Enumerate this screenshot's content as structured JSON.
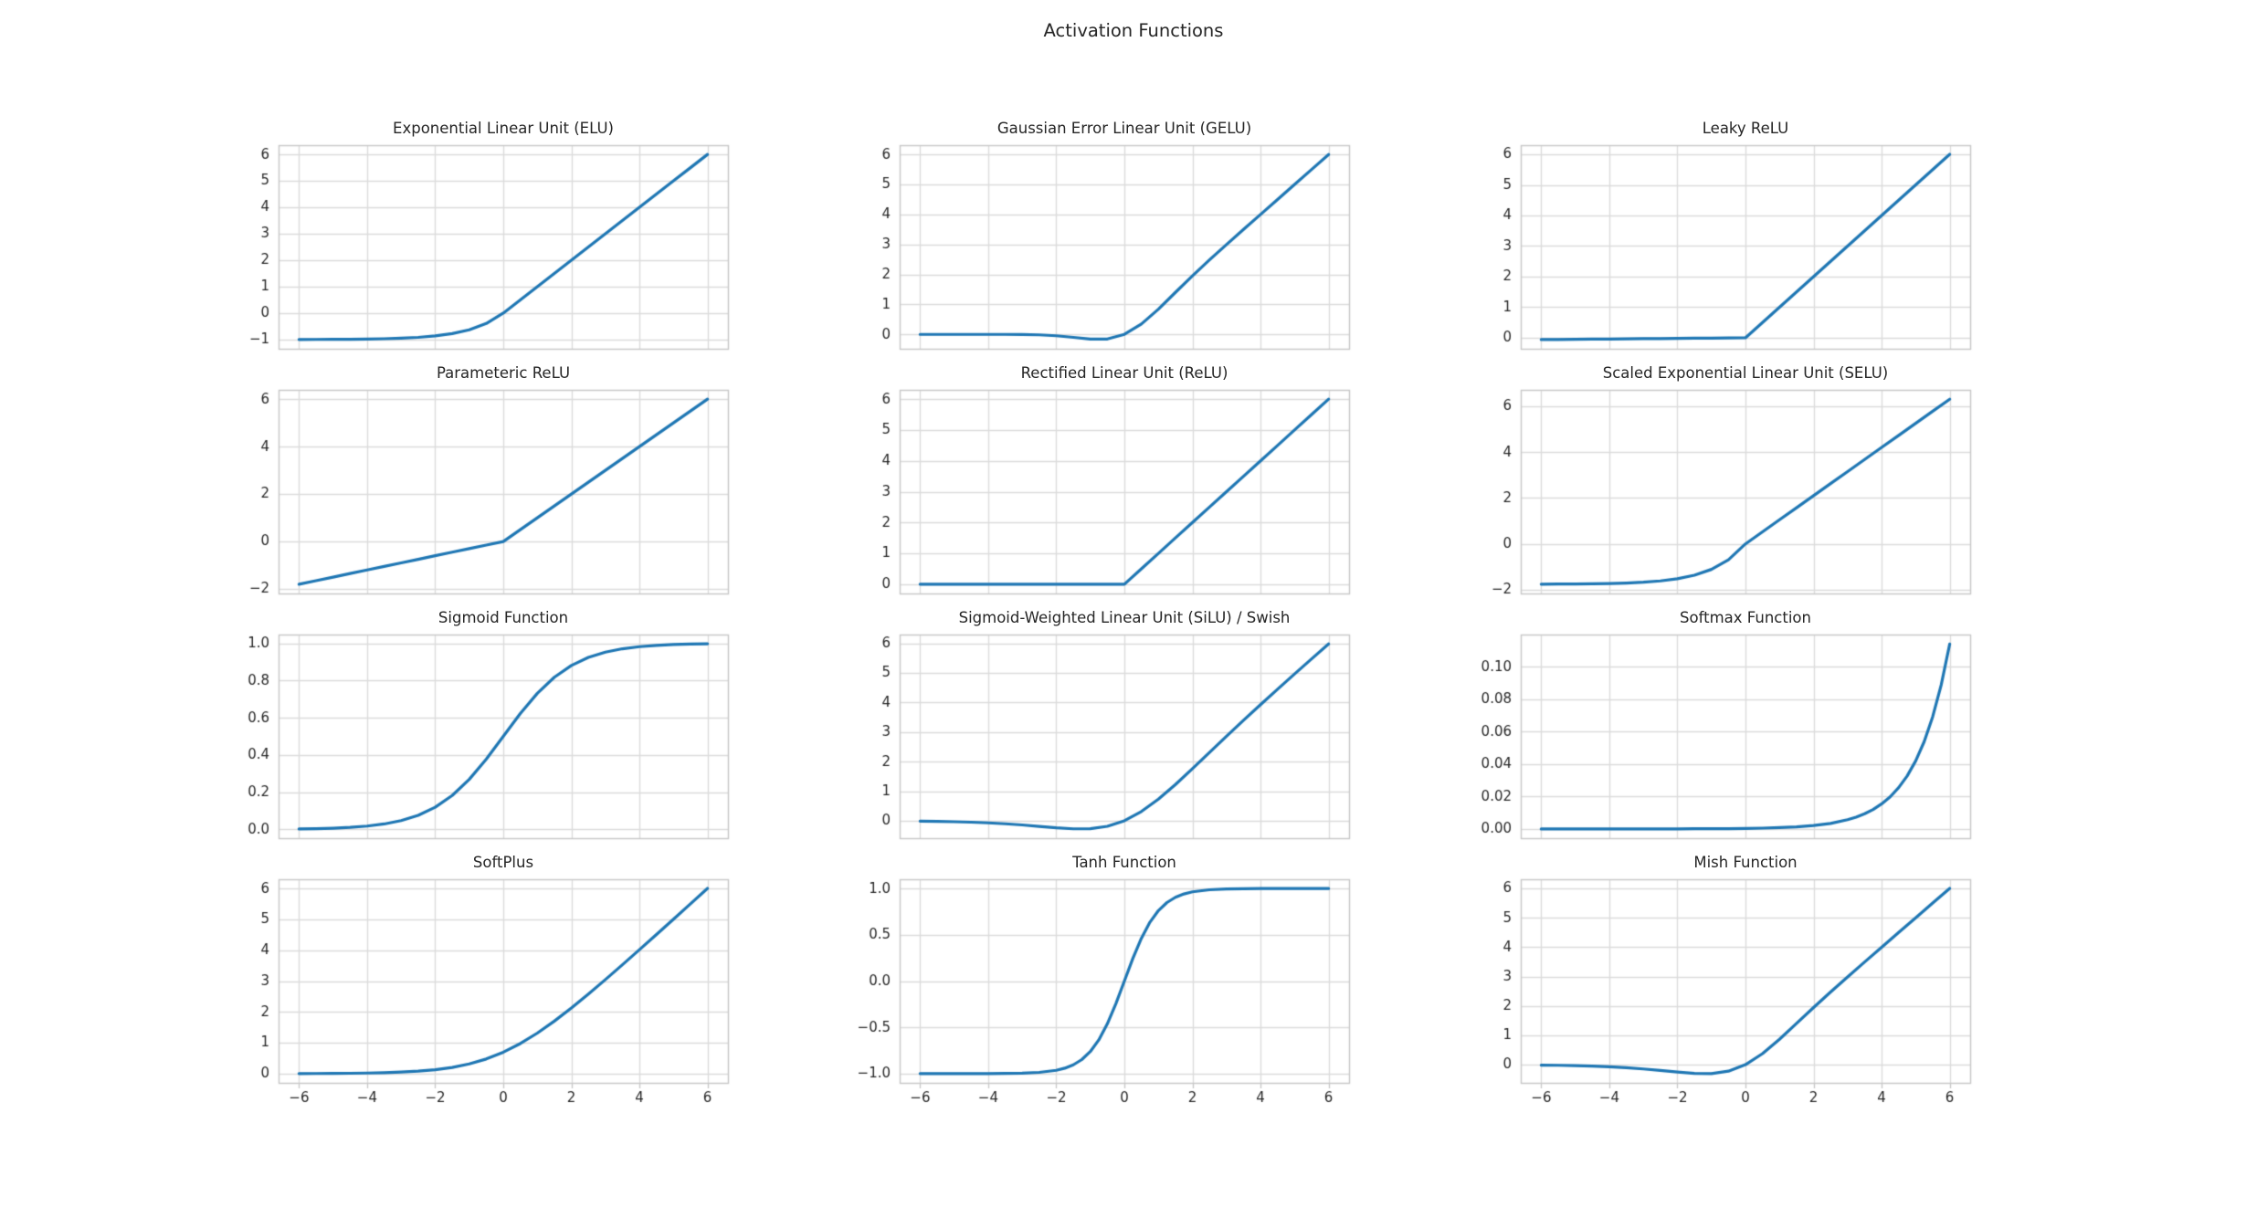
{
  "page": {
    "title": "Activation Functions",
    "grid": {
      "rows": 4,
      "cols": 3
    }
  },
  "style": {
    "line_color": "#1f77b4",
    "grid_color": "#dcdcdc",
    "spine_color": "#c9c9c9",
    "tick_label_color": "#262626",
    "title_color": "#262626",
    "background": "#ffffff"
  },
  "chart_data": [
    {
      "type": "line",
      "title": "Exponential Linear Unit (ELU)",
      "xlim": [
        -6.6,
        6.6
      ],
      "ylim": [
        -1.35,
        6.35
      ],
      "grid": true,
      "show_xticks": false,
      "xticks": {
        "values": [
          -6,
          -4,
          -2,
          0,
          2,
          4,
          6
        ],
        "labels": [
          "−6",
          "−4",
          "−2",
          "0",
          "2",
          "4",
          "6"
        ]
      },
      "yticks": {
        "values": [
          6,
          5,
          4,
          3,
          2,
          1,
          0,
          -1
        ],
        "labels": [
          "6",
          "5",
          "4",
          "3",
          "2",
          "1",
          "0",
          "−1"
        ]
      },
      "x": [
        -6,
        -5.5,
        -5,
        -4.5,
        -4,
        -3.5,
        -3,
        -2.5,
        -2,
        -1.5,
        -1,
        -0.5,
        0,
        0.5,
        1,
        1.5,
        2,
        2.5,
        3,
        3.5,
        4,
        4.5,
        5,
        5.5,
        6
      ],
      "y": [
        -0.998,
        -0.996,
        -0.993,
        -0.989,
        -0.982,
        -0.97,
        -0.95,
        -0.918,
        -0.865,
        -0.777,
        -0.632,
        -0.393,
        0,
        0.5,
        1,
        1.5,
        2,
        2.5,
        3,
        3.5,
        4,
        4.5,
        5,
        5.5,
        6
      ]
    },
    {
      "type": "line",
      "title": "Gaussian Error Linear Unit (GELU)",
      "xlim": [
        -6.6,
        6.6
      ],
      "ylim": [
        -0.48,
        6.31
      ],
      "grid": true,
      "show_xticks": false,
      "xticks": {
        "values": [
          -6,
          -4,
          -2,
          0,
          2,
          4,
          6
        ],
        "labels": [
          "−6",
          "−4",
          "−2",
          "0",
          "2",
          "4",
          "6"
        ]
      },
      "yticks": {
        "values": [
          6,
          5,
          4,
          3,
          2,
          1,
          0
        ],
        "labels": [
          "6",
          "5",
          "4",
          "3",
          "2",
          "1",
          "0"
        ]
      },
      "x": [
        -6,
        -5.5,
        -5,
        -4.5,
        -4,
        -3.5,
        -3,
        -2.5,
        -2,
        -1.5,
        -1,
        -0.5,
        0,
        0.5,
        1,
        1.5,
        2,
        2.5,
        3,
        3.5,
        4,
        4.5,
        5,
        5.5,
        6
      ],
      "y": [
        0,
        0,
        0,
        -0.0001,
        -0.0001,
        -0.0008,
        -0.004,
        -0.0155,
        -0.0455,
        -0.1002,
        -0.1587,
        -0.1543,
        0,
        0.3457,
        0.8413,
        1.3998,
        1.9545,
        2.4845,
        2.996,
        3.4992,
        3.9999,
        4.5,
        5,
        5.5,
        6
      ]
    },
    {
      "type": "line",
      "title": "Leaky ReLU",
      "xlim": [
        -6.6,
        6.6
      ],
      "ylim": [
        -0.36,
        6.3
      ],
      "grid": true,
      "show_xticks": false,
      "xticks": {
        "values": [
          -6,
          -4,
          -2,
          0,
          2,
          4,
          6
        ],
        "labels": [
          "−6",
          "−4",
          "−2",
          "0",
          "2",
          "4",
          "6"
        ]
      },
      "yticks": {
        "values": [
          6,
          5,
          4,
          3,
          2,
          1,
          0
        ],
        "labels": [
          "6",
          "5",
          "4",
          "3",
          "2",
          "1",
          "0"
        ]
      },
      "x": [
        -6,
        -5.5,
        -5,
        -4.5,
        -4,
        -3.5,
        -3,
        -2.5,
        -2,
        -1.5,
        -1,
        -0.5,
        0,
        0.5,
        1,
        1.5,
        2,
        2.5,
        3,
        3.5,
        4,
        4.5,
        5,
        5.5,
        6
      ],
      "y": [
        -0.06,
        -0.055,
        -0.05,
        -0.045,
        -0.04,
        -0.035,
        -0.03,
        -0.025,
        -0.02,
        -0.015,
        -0.01,
        -0.005,
        0,
        0.5,
        1,
        1.5,
        2,
        2.5,
        3,
        3.5,
        4,
        4.5,
        5,
        5.5,
        6
      ]
    },
    {
      "type": "line",
      "title": "Parameteric ReLU",
      "xlim": [
        -6.6,
        6.6
      ],
      "ylim": [
        -2.19,
        6.39
      ],
      "grid": true,
      "show_xticks": false,
      "xticks": {
        "values": [
          -6,
          -4,
          -2,
          0,
          2,
          4,
          6
        ],
        "labels": [
          "−6",
          "−4",
          "−2",
          "0",
          "2",
          "4",
          "6"
        ]
      },
      "yticks": {
        "values": [
          6,
          4,
          2,
          0,
          -2
        ],
        "labels": [
          "6",
          "4",
          "2",
          "0",
          "−2"
        ]
      },
      "x": [
        -6,
        -5.5,
        -5,
        -4.5,
        -4,
        -3.5,
        -3,
        -2.5,
        -2,
        -1.5,
        -1,
        -0.5,
        0,
        0.5,
        1,
        1.5,
        2,
        2.5,
        3,
        3.5,
        4,
        4.5,
        5,
        5.5,
        6
      ],
      "y": [
        -1.8,
        -1.65,
        -1.5,
        -1.35,
        -1.2,
        -1.05,
        -0.9,
        -0.75,
        -0.6,
        -0.45,
        -0.3,
        -0.15,
        0,
        0.5,
        1,
        1.5,
        2,
        2.5,
        3,
        3.5,
        4,
        4.5,
        5,
        5.5,
        6
      ]
    },
    {
      "type": "line",
      "title": "Rectified Linear Unit (ReLU)",
      "xlim": [
        -6.6,
        6.6
      ],
      "ylim": [
        -0.3,
        6.3
      ],
      "grid": true,
      "show_xticks": false,
      "xticks": {
        "values": [
          -6,
          -4,
          -2,
          0,
          2,
          4,
          6
        ],
        "labels": [
          "−6",
          "−4",
          "−2",
          "0",
          "2",
          "4",
          "6"
        ]
      },
      "yticks": {
        "values": [
          6,
          5,
          4,
          3,
          2,
          1,
          0
        ],
        "labels": [
          "6",
          "5",
          "4",
          "3",
          "2",
          "1",
          "0"
        ]
      },
      "x": [
        -6,
        -5.5,
        -5,
        -4.5,
        -4,
        -3.5,
        -3,
        -2.5,
        -2,
        -1.5,
        -1,
        -0.5,
        0,
        0.5,
        1,
        1.5,
        2,
        2.5,
        3,
        3.5,
        4,
        4.5,
        5,
        5.5,
        6
      ],
      "y": [
        0,
        0,
        0,
        0,
        0,
        0,
        0,
        0,
        0,
        0,
        0,
        0,
        0,
        0.5,
        1,
        1.5,
        2,
        2.5,
        3,
        3.5,
        4,
        4.5,
        5,
        5.5,
        6
      ]
    },
    {
      "type": "line",
      "title": "Scaled Exponential Linear Unit (SELU)",
      "xlim": [
        -6.6,
        6.6
      ],
      "ylim": [
        -2.16,
        6.71
      ],
      "grid": true,
      "show_xticks": false,
      "xticks": {
        "values": [
          -6,
          -4,
          -2,
          0,
          2,
          4,
          6
        ],
        "labels": [
          "−6",
          "−4",
          "−2",
          "0",
          "2",
          "4",
          "6"
        ]
      },
      "yticks": {
        "values": [
          6,
          4,
          2,
          0,
          -2
        ],
        "labels": [
          "6",
          "4",
          "2",
          "0",
          "−2"
        ]
      },
      "x": [
        -6,
        -5.5,
        -5,
        -4.5,
        -4,
        -3.5,
        -3,
        -2.5,
        -2,
        -1.5,
        -1,
        -0.5,
        0,
        0.5,
        1,
        1.5,
        2,
        2.5,
        3,
        3.5,
        4,
        4.5,
        5,
        5.5,
        6
      ],
      "y": [
        -1.754,
        -1.751,
        -1.746,
        -1.739,
        -1.726,
        -1.705,
        -1.671,
        -1.614,
        -1.52,
        -1.366,
        -1.111,
        -0.692,
        0,
        0.525,
        1.051,
        1.576,
        2.101,
        2.627,
        3.152,
        3.677,
        4.203,
        4.728,
        5.254,
        5.779,
        6.304
      ]
    },
    {
      "type": "line",
      "title": "Sigmoid Function",
      "xlim": [
        -6.6,
        6.6
      ],
      "ylim": [
        -0.047,
        1.047
      ],
      "grid": true,
      "show_xticks": false,
      "xticks": {
        "values": [
          -6,
          -4,
          -2,
          0,
          2,
          4,
          6
        ],
        "labels": [
          "−6",
          "−4",
          "−2",
          "0",
          "2",
          "4",
          "6"
        ]
      },
      "yticks": {
        "values": [
          1.0,
          0.8,
          0.6,
          0.4,
          0.2,
          0.0
        ],
        "labels": [
          "1.0",
          "0.8",
          "0.6",
          "0.4",
          "0.2",
          "0.0"
        ]
      },
      "x": [
        -6,
        -5.5,
        -5,
        -4.5,
        -4,
        -3.5,
        -3,
        -2.5,
        -2,
        -1.5,
        -1,
        -0.5,
        0,
        0.5,
        1,
        1.5,
        2,
        2.5,
        3,
        3.5,
        4,
        4.5,
        5,
        5.5,
        6
      ],
      "y": [
        0.0025,
        0.0041,
        0.0067,
        0.011,
        0.018,
        0.0293,
        0.0474,
        0.0759,
        0.1192,
        0.1824,
        0.2689,
        0.3775,
        0.5,
        0.6225,
        0.7311,
        0.8176,
        0.8808,
        0.9241,
        0.9526,
        0.9707,
        0.982,
        0.989,
        0.9933,
        0.9959,
        0.9975
      ]
    },
    {
      "type": "line",
      "title": "Sigmoid-Weighted Linear Unit (SiLU) / Swish",
      "xlim": [
        -6.6,
        6.6
      ],
      "ylim": [
        -0.59,
        6.3
      ],
      "grid": true,
      "show_xticks": false,
      "xticks": {
        "values": [
          -6,
          -4,
          -2,
          0,
          2,
          4,
          6
        ],
        "labels": [
          "−6",
          "−4",
          "−2",
          "0",
          "2",
          "4",
          "6"
        ]
      },
      "yticks": {
        "values": [
          6,
          5,
          4,
          3,
          2,
          1,
          0
        ],
        "labels": [
          "6",
          "5",
          "4",
          "3",
          "2",
          "1",
          "0"
        ]
      },
      "x": [
        -6,
        -5.5,
        -5,
        -4.5,
        -4,
        -3.5,
        -3,
        -2.5,
        -2,
        -1.5,
        -1,
        -0.5,
        0,
        0.5,
        1,
        1.5,
        2,
        2.5,
        3,
        3.5,
        4,
        4.5,
        5,
        5.5,
        6
      ],
      "y": [
        -0.0149,
        -0.0224,
        -0.0335,
        -0.0495,
        -0.0719,
        -0.1026,
        -0.1423,
        -0.1897,
        -0.2384,
        -0.2736,
        -0.2689,
        -0.1888,
        0,
        0.3112,
        0.7311,
        1.2264,
        1.7616,
        2.3104,
        2.8577,
        3.3974,
        3.928,
        4.4505,
        4.9665,
        5.4776,
        5.9852
      ]
    },
    {
      "type": "line",
      "title": "Softmax Function",
      "xlim": [
        -6.6,
        6.6
      ],
      "ylim": [
        -0.0057,
        0.12
      ],
      "grid": true,
      "show_xticks": false,
      "xticks": {
        "values": [
          -6,
          -4,
          -2,
          0,
          2,
          4,
          6
        ],
        "labels": [
          "−6",
          "−4",
          "−2",
          "0",
          "2",
          "4",
          "6"
        ]
      },
      "yticks": {
        "values": [
          0.1,
          0.08,
          0.06,
          0.04,
          0.02,
          0.0
        ],
        "labels": [
          "0.10",
          "0.08",
          "0.06",
          "0.04",
          "0.02",
          "0.00"
        ]
      },
      "x": [
        -6,
        -5.5,
        -5,
        -4.5,
        -4,
        -3.5,
        -3,
        -2.5,
        -2,
        -1.5,
        -1,
        -0.5,
        0,
        0.5,
        1,
        1.5,
        2,
        2.5,
        3,
        3.25,
        3.5,
        3.75,
        4,
        4.25,
        4.5,
        4.75,
        5,
        5.25,
        5.5,
        5.75,
        6
      ],
      "y": [
        0,
        0,
        0,
        0,
        0,
        0,
        0,
        0,
        0,
        0.0001,
        0.0001,
        0.0002,
        0.0003,
        0.0005,
        0.0008,
        0.0013,
        0.0021,
        0.0034,
        0.0057,
        0.0073,
        0.0094,
        0.012,
        0.0155,
        0.0198,
        0.0255,
        0.0327,
        0.042,
        0.0539,
        0.0693,
        0.0889,
        0.1142
      ]
    },
    {
      "type": "line",
      "title": "SoftPlus",
      "xlim": [
        -6.6,
        6.6
      ],
      "ylim": [
        -0.3,
        6.3
      ],
      "grid": true,
      "show_xticks": true,
      "xticks": {
        "values": [
          -6,
          -4,
          -2,
          0,
          2,
          4,
          6
        ],
        "labels": [
          "−6",
          "−4",
          "−2",
          "0",
          "2",
          "4",
          "6"
        ]
      },
      "yticks": {
        "values": [
          6,
          5,
          4,
          3,
          2,
          1,
          0
        ],
        "labels": [
          "6",
          "5",
          "4",
          "3",
          "2",
          "1",
          "0"
        ]
      },
      "x": [
        -6,
        -5.5,
        -5,
        -4.5,
        -4,
        -3.5,
        -3,
        -2.5,
        -2,
        -1.5,
        -1,
        -0.5,
        0,
        0.5,
        1,
        1.5,
        2,
        2.5,
        3,
        3.5,
        4,
        4.5,
        5,
        5.5,
        6
      ],
      "y": [
        0.0025,
        0.0041,
        0.0067,
        0.011,
        0.0181,
        0.0298,
        0.0486,
        0.0789,
        0.1269,
        0.2014,
        0.3133,
        0.4741,
        0.6931,
        0.9741,
        1.3133,
        1.7014,
        2.1269,
        2.5789,
        3.0486,
        3.5298,
        4.0181,
        4.511,
        5.0067,
        5.5041,
        6.0025
      ]
    },
    {
      "type": "line",
      "title": "Tanh Function",
      "xlim": [
        -6.6,
        6.6
      ],
      "ylim": [
        -1.1,
        1.1
      ],
      "grid": true,
      "show_xticks": true,
      "xticks": {
        "values": [
          -6,
          -4,
          -2,
          0,
          2,
          4,
          6
        ],
        "labels": [
          "−6",
          "−4",
          "−2",
          "0",
          "2",
          "4",
          "6"
        ]
      },
      "yticks": {
        "values": [
          1.0,
          0.5,
          0.0,
          -0.5,
          -1.0
        ],
        "labels": [
          "1.0",
          "0.5",
          "0.0",
          "−0.5",
          "−1.0"
        ]
      },
      "x": [
        -6,
        -5.5,
        -5,
        -4.5,
        -4,
        -3.5,
        -3,
        -2.5,
        -2,
        -1.75,
        -1.5,
        -1.25,
        -1,
        -0.75,
        -0.5,
        -0.25,
        0,
        0.25,
        0.5,
        0.75,
        1,
        1.25,
        1.5,
        1.75,
        2,
        2.5,
        3,
        3.5,
        4,
        4.5,
        5,
        5.5,
        6
      ],
      "y": [
        -1,
        -1,
        -0.9999,
        -0.9997,
        -0.9993,
        -0.9982,
        -0.995,
        -0.9866,
        -0.964,
        -0.9414,
        -0.9051,
        -0.8483,
        -0.7616,
        -0.6351,
        -0.4621,
        -0.2449,
        0,
        0.2449,
        0.4621,
        0.6351,
        0.7616,
        0.8483,
        0.9051,
        0.9414,
        0.964,
        0.9866,
        0.995,
        0.9982,
        0.9993,
        0.9997,
        0.9999,
        1,
        1
      ]
    },
    {
      "type": "line",
      "title": "Mish Function",
      "xlim": [
        -6.6,
        6.6
      ],
      "ylim": [
        -0.62,
        6.31
      ],
      "grid": true,
      "show_xticks": true,
      "xticks": {
        "values": [
          -6,
          -4,
          -2,
          0,
          2,
          4,
          6
        ],
        "labels": [
          "−6",
          "−4",
          "−2",
          "0",
          "2",
          "4",
          "6"
        ]
      },
      "yticks": {
        "values": [
          6,
          5,
          4,
          3,
          2,
          1,
          0
        ],
        "labels": [
          "6",
          "5",
          "4",
          "3",
          "2",
          "1",
          "0"
        ]
      },
      "x": [
        -6,
        -5.5,
        -5,
        -4.5,
        -4,
        -3.5,
        -3,
        -2.5,
        -2,
        -1.5,
        -1,
        -0.5,
        0,
        0.5,
        1,
        1.5,
        2,
        2.5,
        3,
        3.5,
        4,
        4.5,
        5,
        5.5,
        6
      ],
      "y": [
        -0.0149,
        -0.0224,
        -0.0336,
        -0.0497,
        -0.0726,
        -0.1041,
        -0.1456,
        -0.1968,
        -0.2525,
        -0.2981,
        -0.3034,
        -0.2207,
        0,
        0.3751,
        0.8648,
        1.4031,
        1.9445,
        2.4715,
        2.9866,
        3.494,
        3.9973,
        4.4989,
        4.9996,
        5.4998,
        5.9999
      ]
    }
  ]
}
